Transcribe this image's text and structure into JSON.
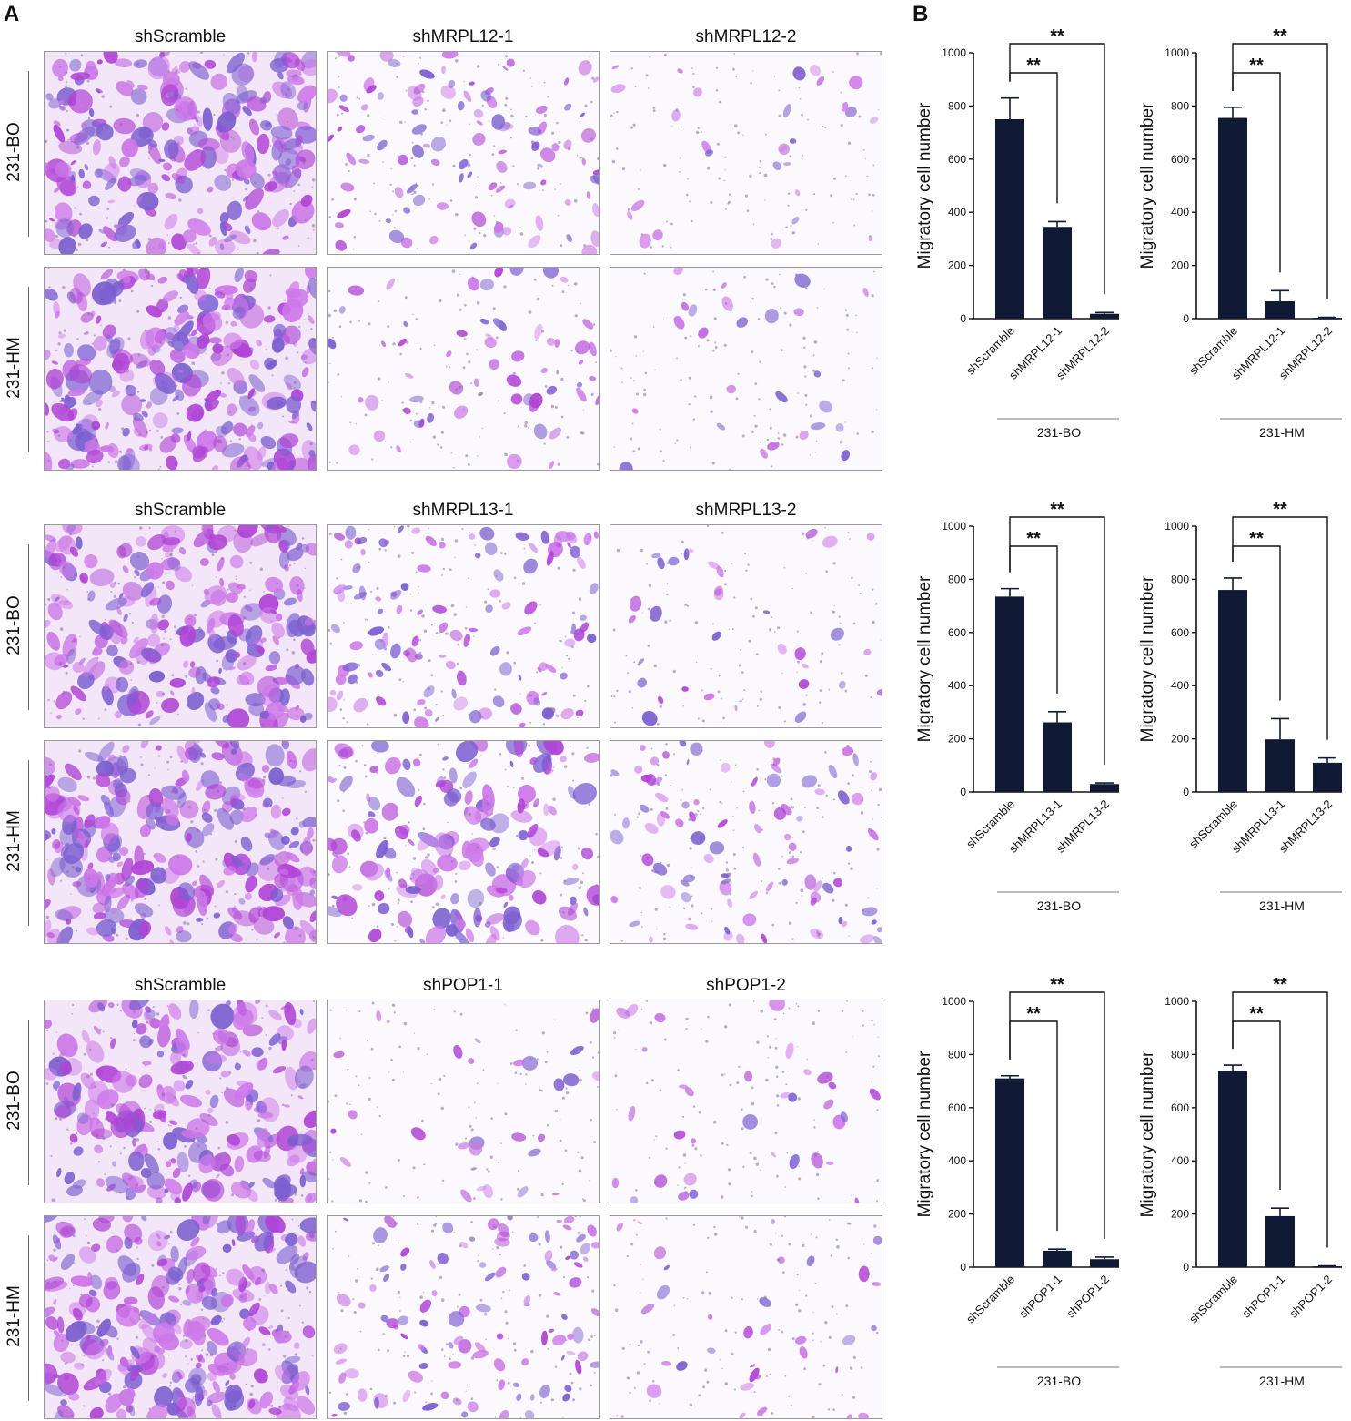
{
  "panels": {
    "a": "A",
    "b": "B"
  },
  "colors": {
    "bar": "#111a35",
    "stain_dense": "#b044d6",
    "stain_light": "#cc77e8",
    "stain_blue": "#7c5fd0",
    "background": "#ffffff"
  },
  "micrographs": [
    {
      "columns": [
        "shScramble",
        "shMRPL12-1",
        "shMRPL12-2"
      ],
      "rows": [
        {
          "label": "231-BO",
          "density": [
            0.85,
            0.35,
            0.06
          ]
        },
        {
          "label": "231-HM",
          "density": [
            0.95,
            0.18,
            0.05
          ]
        }
      ]
    },
    {
      "columns": [
        "shScramble",
        "shMRPL13-1",
        "shMRPL13-2"
      ],
      "rows": [
        {
          "label": "231-BO",
          "density": [
            0.85,
            0.4,
            0.08
          ]
        },
        {
          "label": "231-HM",
          "density": [
            0.95,
            0.55,
            0.3
          ]
        }
      ]
    },
    {
      "columns": [
        "shScramble",
        "shPOP1-1",
        "shPOP1-2"
      ],
      "rows": [
        {
          "label": "231-BO",
          "density": [
            0.8,
            0.06,
            0.08
          ]
        },
        {
          "label": "231-HM",
          "density": [
            0.95,
            0.35,
            0.08
          ]
        }
      ]
    }
  ],
  "chart_data": [
    {
      "type": "bar",
      "group": "231-BO",
      "ylabel": "Migratory cell number",
      "ylim": [
        0,
        1000
      ],
      "yticks": [
        "0",
        "200",
        "400",
        "600",
        "800",
        "1000"
      ],
      "categories": [
        "shScramble",
        "shMRPL12-1",
        "shMRPL12-2"
      ],
      "values": [
        750,
        345,
        18
      ],
      "errors": [
        80,
        20,
        5
      ],
      "significance": [
        {
          "from": "shScramble",
          "to": "shMRPL12-1",
          "label": "**"
        },
        {
          "from": "shScramble",
          "to": "shMRPL12-2",
          "label": "**"
        }
      ]
    },
    {
      "type": "bar",
      "group": "231-HM",
      "ylabel": "Migratory cell number",
      "ylim": [
        0,
        1000
      ],
      "yticks": [
        "0",
        "200",
        "400",
        "600",
        "800",
        "1000"
      ],
      "categories": [
        "shScramble",
        "shMRPL12-1",
        "shMRPL12-2"
      ],
      "values": [
        755,
        65,
        3
      ],
      "errors": [
        40,
        40,
        2
      ],
      "significance": [
        {
          "from": "shScramble",
          "to": "shMRPL12-1",
          "label": "**"
        },
        {
          "from": "shScramble",
          "to": "shMRPL12-2",
          "label": "**"
        }
      ]
    },
    {
      "type": "bar",
      "group": "231-BO",
      "ylabel": "Migratory cell number",
      "ylim": [
        0,
        1000
      ],
      "yticks": [
        "0",
        "200",
        "400",
        "600",
        "800",
        "1000"
      ],
      "categories": [
        "shScramble",
        "shMRPL13-1",
        "shMRPL13-2"
      ],
      "values": [
        735,
        262,
        30
      ],
      "errors": [
        30,
        40,
        4
      ],
      "significance": [
        {
          "from": "shScramble",
          "to": "shMRPL13-1",
          "label": "**"
        },
        {
          "from": "shScramble",
          "to": "shMRPL13-2",
          "label": "**"
        }
      ]
    },
    {
      "type": "bar",
      "group": "231-HM",
      "ylabel": "Migratory cell number",
      "ylim": [
        0,
        1000
      ],
      "yticks": [
        "0",
        "200",
        "400",
        "600",
        "800",
        "1000"
      ],
      "categories": [
        "shScramble",
        "shMRPL13-1",
        "shMRPL13-2"
      ],
      "values": [
        760,
        198,
        110
      ],
      "errors": [
        45,
        78,
        18
      ],
      "significance": [
        {
          "from": "shScramble",
          "to": "shMRPL13-1",
          "label": "**"
        },
        {
          "from": "shScramble",
          "to": "shMRPL13-2",
          "label": "**"
        }
      ]
    },
    {
      "type": "bar",
      "group": "231-BO",
      "ylabel": "Migratory cell number",
      "ylim": [
        0,
        1000
      ],
      "yticks": [
        "0",
        "200",
        "400",
        "600",
        "800",
        "1000"
      ],
      "categories": [
        "shScramble",
        "shPOP1-1",
        "shPOP1-2"
      ],
      "values": [
        710,
        62,
        30
      ],
      "errors": [
        10,
        6,
        8
      ],
      "significance": [
        {
          "from": "shScramble",
          "to": "shPOP1-1",
          "label": "**"
        },
        {
          "from": "shScramble",
          "to": "shPOP1-2",
          "label": "**"
        }
      ]
    },
    {
      "type": "bar",
      "group": "231-HM",
      "ylabel": "Migratory cell number",
      "ylim": [
        0,
        1000
      ],
      "yticks": [
        "0",
        "200",
        "400",
        "600",
        "800",
        "1000"
      ],
      "categories": [
        "shScramble",
        "shPOP1-1",
        "shPOP1-2"
      ],
      "values": [
        738,
        192,
        3
      ],
      "errors": [
        22,
        30,
        2
      ],
      "significance": [
        {
          "from": "shScramble",
          "to": "shPOP1-1",
          "label": "**"
        },
        {
          "from": "shScramble",
          "to": "shPOP1-2",
          "label": "**"
        }
      ]
    }
  ]
}
